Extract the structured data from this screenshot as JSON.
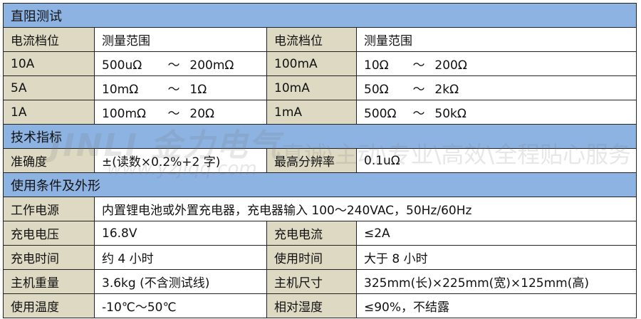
{
  "sections": {
    "dc": {
      "title": "直阻测试",
      "header": [
        "电流档位",
        "测量范围",
        "电流档位",
        "测量范围"
      ],
      "rows": [
        {
          "c1": "10A",
          "r1a": "500uΩ",
          "r1b": "200mΩ",
          "c2": "100mA",
          "r2a": "10Ω",
          "r2b": "200Ω"
        },
        {
          "c1": "5A",
          "r1a": "10mΩ",
          "r1b": "1Ω",
          "c2": "10mA",
          "r2a": "50Ω",
          "r2b": "2kΩ"
        },
        {
          "c1": "1A",
          "r1a": "100mΩ",
          "r1b": "20Ω",
          "c2": "1mA",
          "r2a": "500Ω",
          "r2b": "50kΩ"
        }
      ],
      "tilde": "～"
    },
    "spec": {
      "title": "技术指标",
      "accuracy_label": "准确度",
      "accuracy_value": "±(读数×0.2%+2 字)",
      "resolution_label": "最高分辨率",
      "resolution_value": "0.1uΩ"
    },
    "cond": {
      "title": "使用条件及外形",
      "power_label": "工作电源",
      "power_value": "内置锂电池或外置充电器，充电器输入 100～240VAC，50Hz/60Hz",
      "rows": [
        {
          "l1": "充电电压",
          "v1": "16.8V",
          "l2": "充电电流",
          "v2": "≤2A"
        },
        {
          "l1": "充电时间",
          "v1": "约 4 小时",
          "l2": "使用时间",
          "v2": "大于 8 小时"
        },
        {
          "l1": "主机重量",
          "v1": "3.6kg (不含测试线)",
          "l2": "主机尺寸",
          "v2": "325mm(长)×225mm(宽)×125mm(高)"
        },
        {
          "l1": "使用温度",
          "v1": "-10℃～50℃",
          "l2": "相对湿度",
          "v2": "≤90%，不结露"
        }
      ]
    }
  },
  "watermark": {
    "brand": "JINLI 金力电气",
    "slogan": "真诚\\主动\\专业\\高效\\全程贴心服务",
    "url": "www.yzjlqq.com"
  },
  "colors": {
    "section_bg": "#8db3e2",
    "label_bg": "#ddd9c3"
  }
}
